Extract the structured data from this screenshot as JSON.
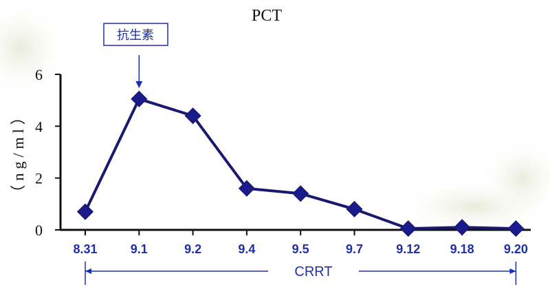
{
  "chart_data": {
    "type": "line",
    "title": "PCT",
    "ylabel": "（ng/ml）",
    "ylim": [
      0,
      6
    ],
    "yticks": [
      0,
      2,
      4,
      6
    ],
    "categories": [
      "8.31",
      "9.1",
      "9.2",
      "9.4",
      "9.5",
      "9.7",
      "9.12",
      "9.18",
      "9.20"
    ],
    "series": [
      {
        "values": [
          0.7,
          5.05,
          4.4,
          1.6,
          1.4,
          0.8,
          0.05,
          0.1,
          0.05
        ]
      }
    ],
    "annotations": {
      "antibiotic_label": "抗生素",
      "antibiotic_at": "9.1",
      "crrt_label": "CRRT",
      "crrt_from": "8.31",
      "crrt_to": "9.20"
    },
    "colors": {
      "line": "#191970",
      "marker": "#1a1a8c",
      "tick_text": "#1f2fa8",
      "annotation": "#1a2fb0"
    },
    "marker": "diamond",
    "grid": false
  }
}
